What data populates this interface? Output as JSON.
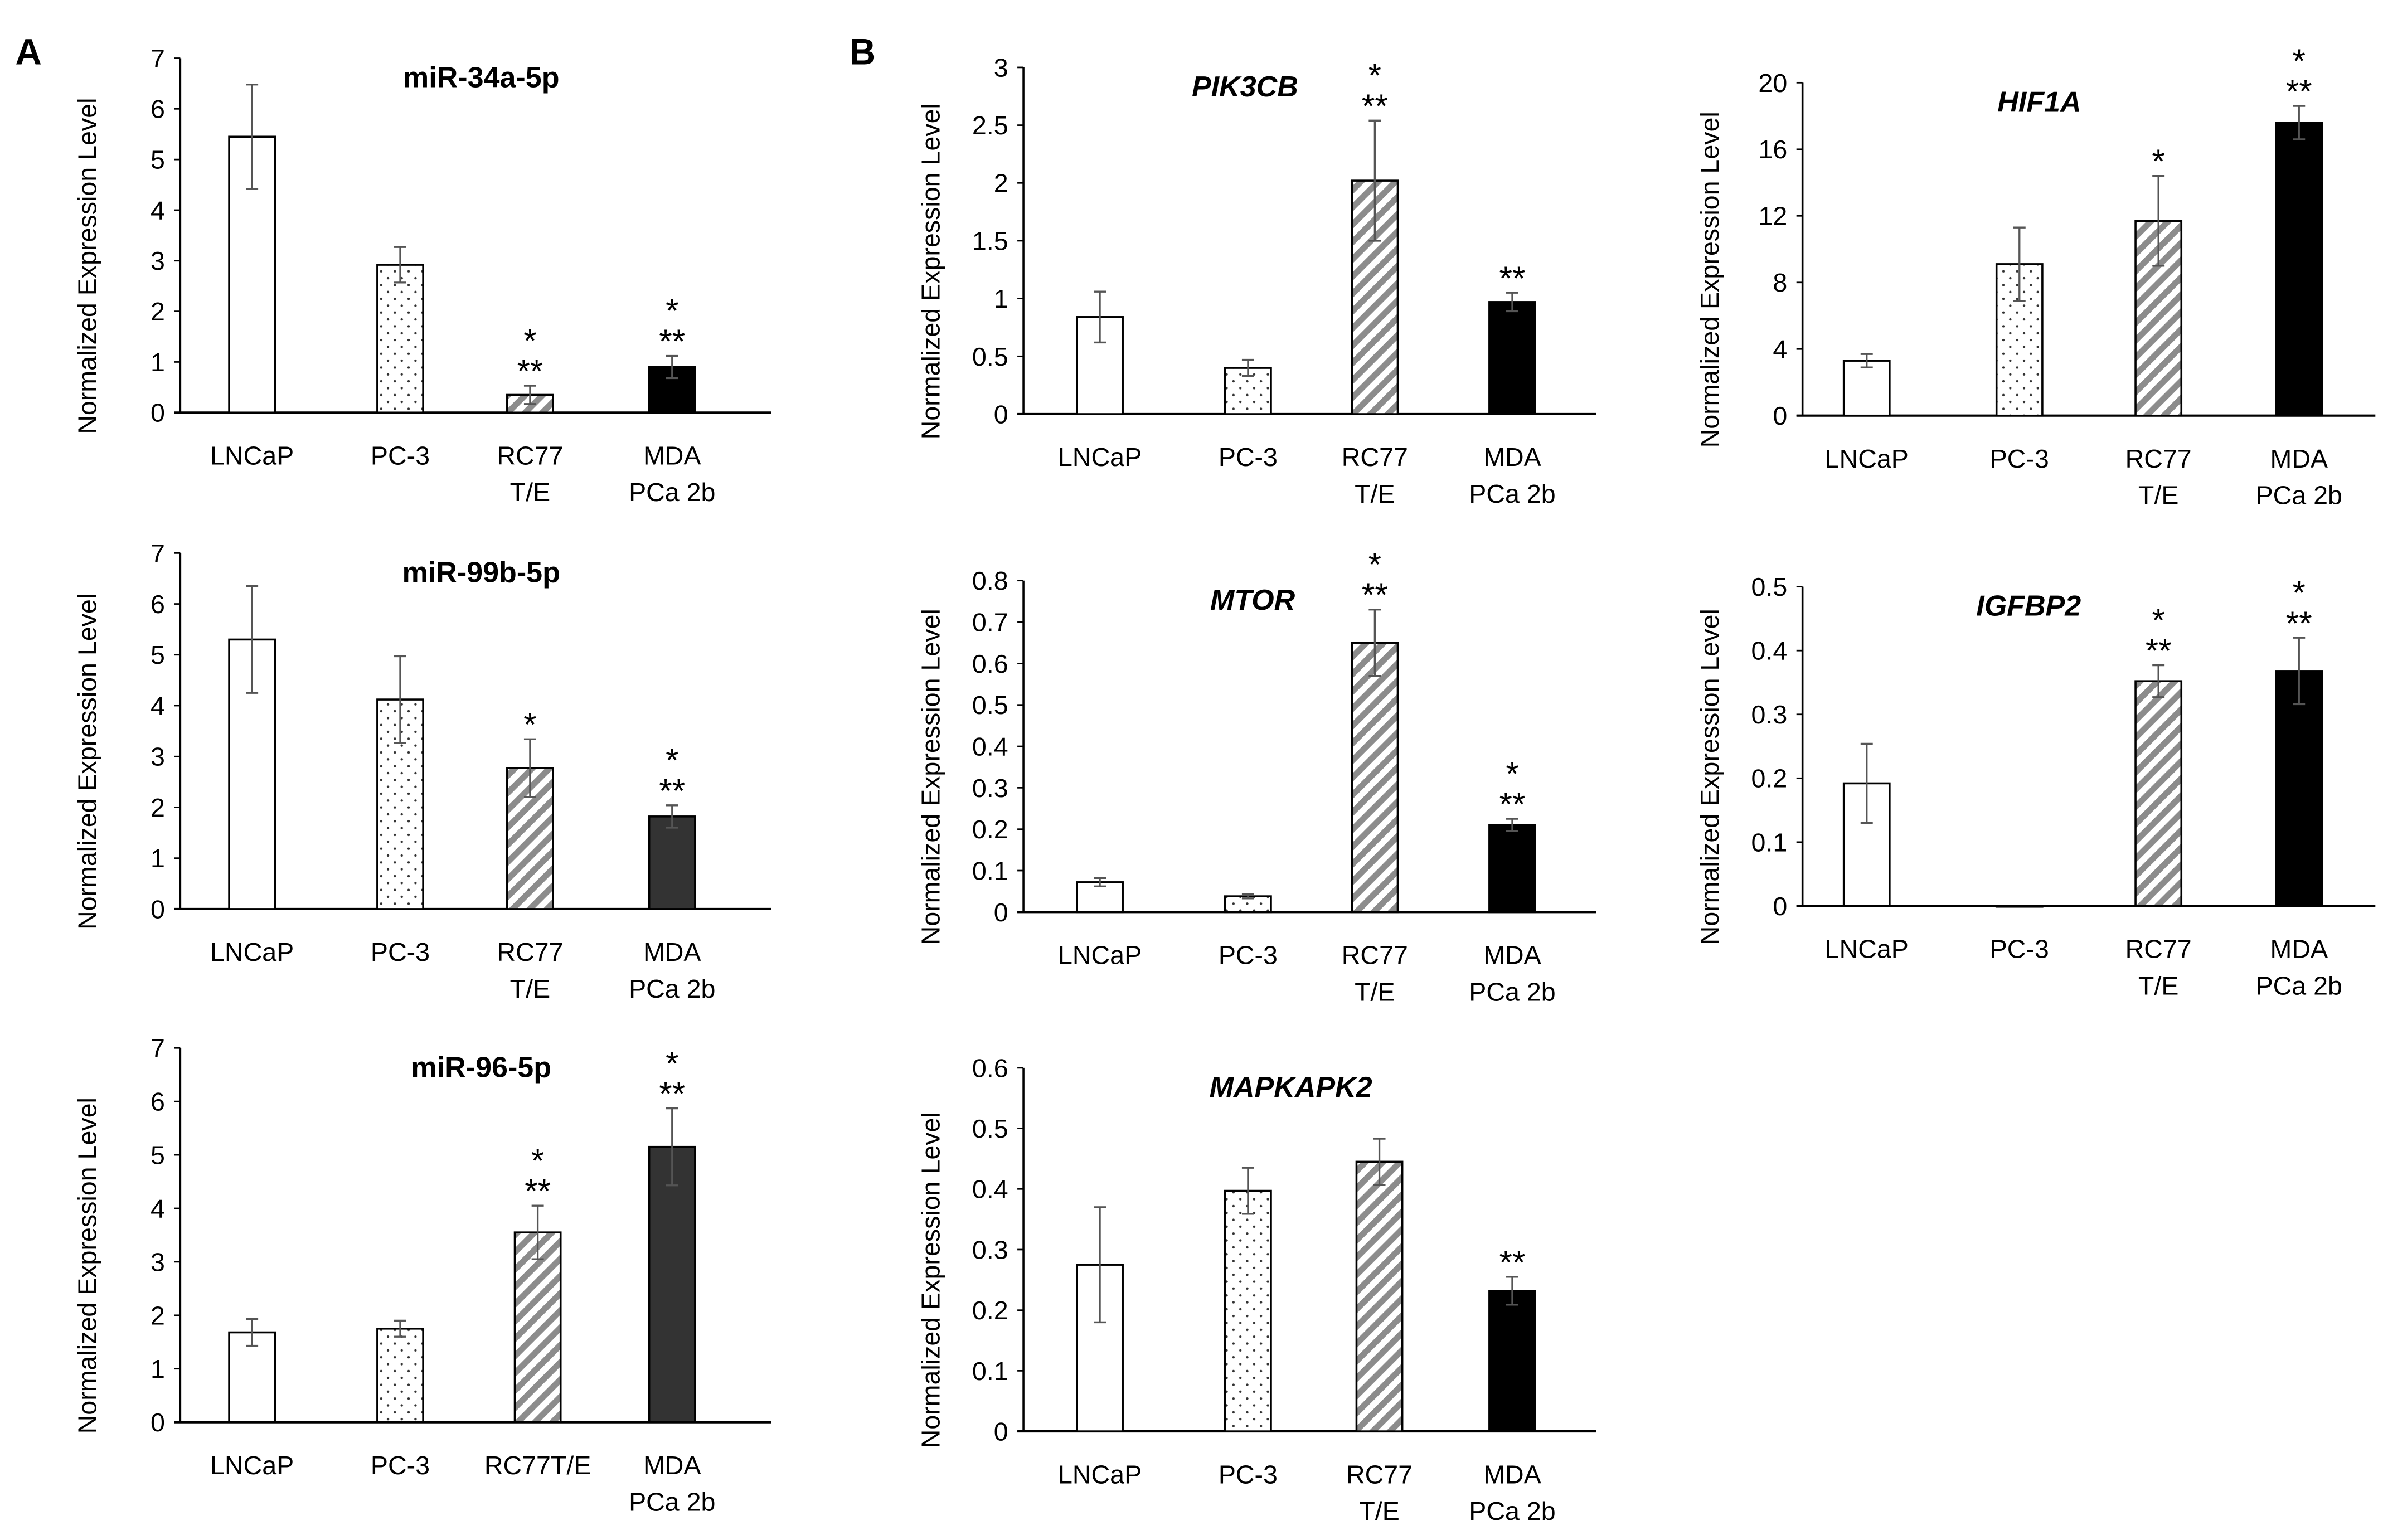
{
  "panels": [
    "A",
    "B"
  ],
  "colors": {
    "bar_black": "#000000",
    "bar_dark": "#333333",
    "hatch": "#8c8c8c",
    "error": "#555555"
  },
  "chart_data": [
    {
      "type": "bar",
      "panel": "A",
      "title": "miR-34a-5p",
      "title_italic": false,
      "ylabel": "Normalized Expression Level",
      "ylim": [
        0,
        7
      ],
      "yticks": [
        "0",
        "1",
        "2",
        "3",
        "4",
        "5",
        "6",
        "7"
      ],
      "categories": [
        [
          "LNCaP"
        ],
        [
          "PC-3"
        ],
        [
          "RC77",
          "T/E"
        ],
        [
          "MDA",
          "PCa 2b"
        ]
      ],
      "values": [
        5.45,
        2.92,
        0.35,
        0.9
      ],
      "errors": [
        1.03,
        0.35,
        0.18,
        0.22
      ],
      "significance": [
        [],
        [],
        [
          "*",
          "**"
        ],
        [
          "*",
          "**"
        ]
      ],
      "last_bar_color": "#000000"
    },
    {
      "type": "bar",
      "panel": "A",
      "title": "miR-99b-5p",
      "title_italic": false,
      "ylabel": "Normalized Expression Level",
      "ylim": [
        0,
        7
      ],
      "yticks": [
        "0",
        "1",
        "2",
        "3",
        "4",
        "5",
        "6",
        "7"
      ],
      "categories": [
        [
          "LNCaP"
        ],
        [
          "PC-3"
        ],
        [
          "RC77",
          "T/E"
        ],
        [
          "MDA",
          "PCa 2b"
        ]
      ],
      "values": [
        5.3,
        4.12,
        2.77,
        1.82
      ],
      "errors": [
        1.05,
        0.85,
        0.57,
        0.22
      ],
      "significance": [
        [],
        [],
        [
          "*"
        ],
        [
          "*",
          "**"
        ]
      ],
      "last_bar_color": "#333333"
    },
    {
      "type": "bar",
      "panel": "A",
      "title": "miR-96-5p",
      "title_italic": false,
      "ylabel": "Normalized Expression Level",
      "ylim": [
        0,
        7
      ],
      "yticks": [
        "0",
        "1",
        "2",
        "3",
        "4",
        "5",
        "6",
        "7"
      ],
      "categories": [
        [
          "LNCaP"
        ],
        [
          "PC-3"
        ],
        [
          "RC77T/E"
        ],
        [
          "MDA",
          "PCa 2b"
        ]
      ],
      "values": [
        1.68,
        1.75,
        3.55,
        5.15
      ],
      "errors": [
        0.25,
        0.15,
        0.5,
        0.72
      ],
      "significance": [
        [],
        [],
        [
          "*",
          "**"
        ],
        [
          "*",
          "**"
        ]
      ],
      "last_bar_color": "#333333"
    },
    {
      "type": "bar",
      "panel": "B",
      "title": "PIK3CB",
      "title_italic": true,
      "ylabel": "Normalized Expression Level",
      "ylim": [
        0,
        3
      ],
      "yticks": [
        "0",
        "0.5",
        "1",
        "1.5",
        "2",
        "2.5",
        "3"
      ],
      "categories": [
        [
          "LNCaP"
        ],
        [
          "PC-3"
        ],
        [
          "RC77",
          "T/E"
        ],
        [
          "MDA",
          "PCa 2b"
        ]
      ],
      "values": [
        0.84,
        0.4,
        2.02,
        0.97
      ],
      "errors": [
        0.22,
        0.07,
        0.52,
        0.08
      ],
      "significance": [
        [],
        [],
        [
          "*",
          "**"
        ],
        [
          "**"
        ]
      ],
      "last_bar_color": "#000000"
    },
    {
      "type": "bar",
      "panel": "B",
      "title": "MTOR",
      "title_italic": true,
      "ylabel": "Normalized Expression Level",
      "ylim": [
        0,
        0.8
      ],
      "yticks": [
        "0",
        "0.1",
        "0.2",
        "0.3",
        "0.4",
        "0.5",
        "0.6",
        "0.7",
        "0.8"
      ],
      "categories": [
        [
          "LNCaP"
        ],
        [
          "PC-3"
        ],
        [
          "RC77",
          "T/E"
        ],
        [
          "MDA",
          "PCa 2b"
        ]
      ],
      "values": [
        0.072,
        0.038,
        0.65,
        0.21
      ],
      "errors": [
        0.01,
        0.005,
        0.08,
        0.015
      ],
      "significance": [
        [],
        [],
        [
          "*",
          "**"
        ],
        [
          "*",
          "**"
        ]
      ],
      "last_bar_color": "#000000"
    },
    {
      "type": "bar",
      "panel": "B",
      "title": "MAPKAPK2",
      "title_italic": true,
      "ylabel": "Normalized Expression Level",
      "ylim": [
        0,
        0.6
      ],
      "yticks": [
        "0",
        "0.1",
        "0.2",
        "0.3",
        "0.4",
        "0.5",
        "0.6"
      ],
      "categories": [
        [
          "LNCaP"
        ],
        [
          "PC-3"
        ],
        [
          "RC77",
          "T/E"
        ],
        [
          "MDA",
          "PCa 2b"
        ]
      ],
      "values": [
        0.275,
        0.397,
        0.445,
        0.232
      ],
      "errors": [
        0.095,
        0.038,
        0.038,
        0.023
      ],
      "significance": [
        [],
        [],
        [],
        [
          "**"
        ]
      ],
      "last_bar_color": "#000000"
    },
    {
      "type": "bar",
      "panel": "B",
      "title": "HIF1A",
      "title_italic": true,
      "ylabel": "Normalized Expression Level",
      "ylim": [
        0,
        20
      ],
      "yticks": [
        "0",
        "4",
        "8",
        "12",
        "16",
        "20"
      ],
      "categories": [
        [
          "LNCaP"
        ],
        [
          "PC-3"
        ],
        [
          "RC77",
          "T/E"
        ],
        [
          "MDA",
          "PCa 2b"
        ]
      ],
      "values": [
        3.3,
        9.1,
        11.7,
        17.6
      ],
      "errors": [
        0.4,
        2.2,
        2.7,
        1.0
      ],
      "significance": [
        [],
        [],
        [
          "*"
        ],
        [
          "*",
          "**"
        ]
      ],
      "last_bar_color": "#000000"
    },
    {
      "type": "bar",
      "panel": "B",
      "title": "IGFBP2",
      "title_italic": true,
      "ylabel": "Normalized Expression Level",
      "ylim": [
        0,
        0.5
      ],
      "yticks": [
        "0",
        "0.1",
        "0.2",
        "0.3",
        "0.4",
        "0.5"
      ],
      "categories": [
        [
          "LNCaP"
        ],
        [
          "PC-3"
        ],
        [
          "RC77",
          "T/E"
        ],
        [
          "MDA",
          "PCa 2b"
        ]
      ],
      "values": [
        0.192,
        0,
        0.352,
        0.368
      ],
      "errors": [
        0.062,
        0,
        0.025,
        0.052
      ],
      "significance": [
        [],
        [],
        [
          "*",
          "**"
        ],
        [
          "*",
          "**"
        ]
      ],
      "last_bar_color": "#000000"
    }
  ]
}
